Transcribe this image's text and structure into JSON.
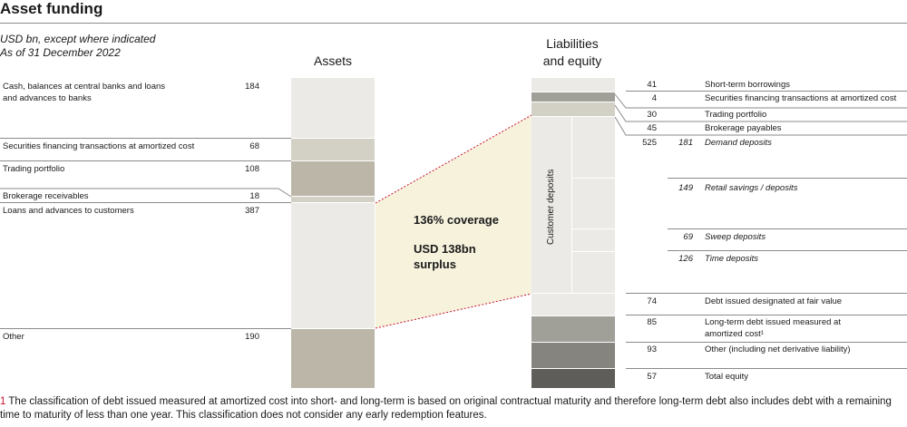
{
  "title": "Asset funding",
  "subtitle": [
    "USD bn, except where indicated",
    "As of 31 December 2022"
  ],
  "assets_header": "Assets",
  "liabilities_header": [
    "Liabilities",
    "and equity"
  ],
  "assets": [
    {
      "label": "Cash, balances at central banks and loans and advances to banks",
      "value": "184",
      "color": "#ebeae6"
    },
    {
      "label": "Securities financing transactions at amortized cost",
      "value": "68",
      "color": "#d3d1c6"
    },
    {
      "label": "Trading portfolio",
      "value": "108",
      "color": "#bbb6a7"
    },
    {
      "label": "Brokerage receivables",
      "value": "18",
      "color": "#d3d1c6"
    },
    {
      "label": "Loans and advances to customers",
      "value": "387",
      "color": "#ebeae6"
    },
    {
      "label": "Other",
      "value": "190",
      "color": "#bbb6a7"
    }
  ],
  "liabilities": [
    {
      "value": "41",
      "sub": "",
      "label": "Short-term borrowings",
      "italic": false
    },
    {
      "value": "4",
      "sub": "",
      "label": "Securities financing transactions at amortized cost",
      "italic": false
    },
    {
      "value": "30",
      "sub": "",
      "label": "Trading portfolio",
      "italic": false
    },
    {
      "value": "45",
      "sub": "",
      "label": "Brokerage payables",
      "italic": false
    },
    {
      "value": "525",
      "sub": "181",
      "label": "Demand deposits",
      "italic": true
    },
    {
      "value": "",
      "sub": "149",
      "label": "Retail savings / deposits",
      "italic": true
    },
    {
      "value": "",
      "sub": "69",
      "label": "Sweep deposits",
      "italic": true
    },
    {
      "value": "",
      "sub": "126",
      "label": "Time deposits",
      "italic": true
    },
    {
      "value": "74",
      "sub": "",
      "label": "Debt issued designated at fair value",
      "italic": false
    },
    {
      "value": "85",
      "sub": "",
      "label": "Long-term debt issued measured at amortized cost¹",
      "italic": false
    },
    {
      "value": "93",
      "sub": "",
      "label": "Other (including net derivative liability)",
      "italic": false
    },
    {
      "value": "57",
      "sub": "",
      "label": "Total equity",
      "italic": false
    }
  ],
  "customer_deposits_label": "Customer deposits",
  "coverage": "136% coverage",
  "surplus": [
    "USD 138bn",
    "surplus"
  ],
  "footnote_marker": "1",
  "footnote": "The classification of debt issued measured at amortized cost into short- and long-term is based on original contractual maturity and therefore long-term debt also includes debt with a remaining time to maturity of less than one year. This classification does not consider any early redemption features.",
  "colors": {
    "light": "#ebeae6",
    "mid": "#d3d1c6",
    "tan": "#bbb6a7",
    "grey1": "#a09f98",
    "grey2": "#86847f",
    "dark": "#5e5d5a",
    "coverage_fill": "#f6f2dc",
    "dashed_line": "#c8102e"
  }
}
